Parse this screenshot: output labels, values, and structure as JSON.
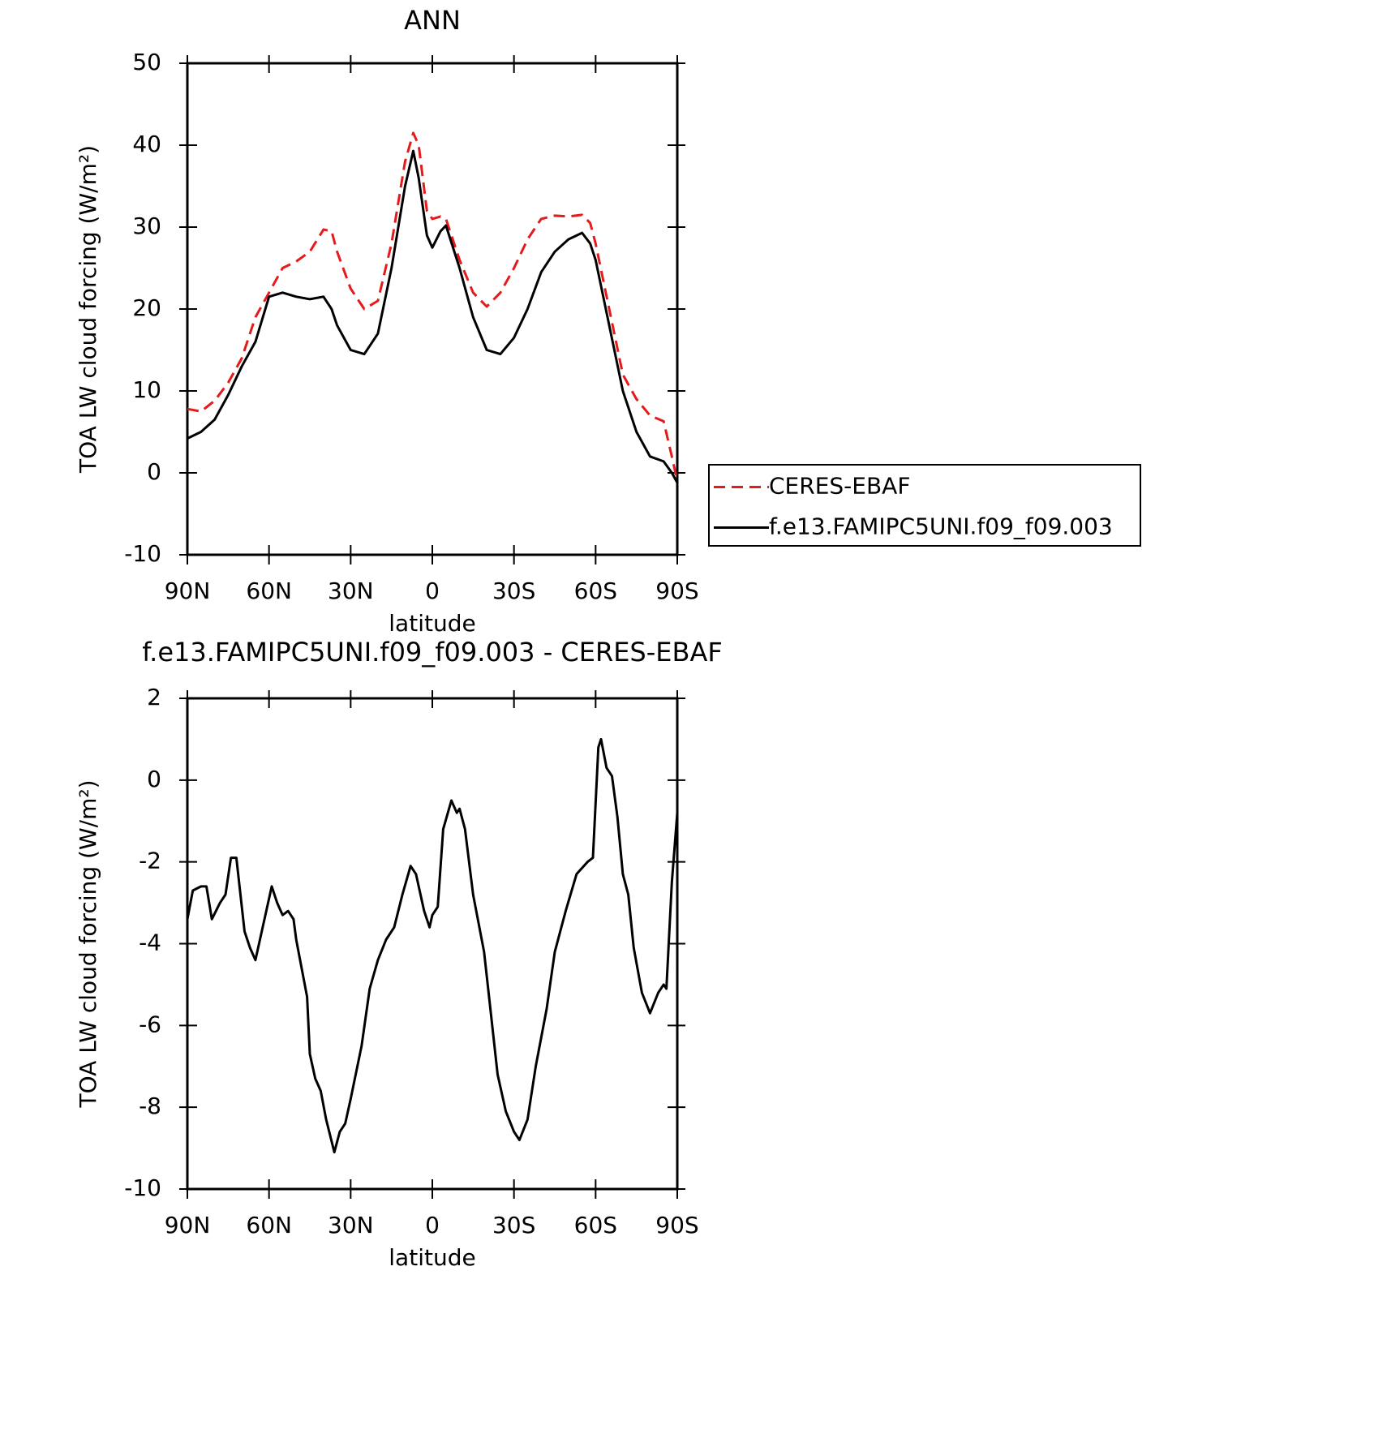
{
  "chart_data": [
    {
      "type": "line",
      "title": "ANN",
      "xlabel": "latitude",
      "ylabel": "TOA LW cloud forcing (W/m²)",
      "xlim": [
        90,
        -90
      ],
      "xticks": [
        {
          "value": 90,
          "label": "90N"
        },
        {
          "value": 60,
          "label": "60N"
        },
        {
          "value": 30,
          "label": "30N"
        },
        0,
        {
          "value": -30,
          "label": "30S"
        },
        {
          "value": -60,
          "label": "60S"
        },
        {
          "value": -90,
          "label": "90S"
        }
      ],
      "ylim": [
        -10,
        50
      ],
      "yticks": [
        -10,
        0,
        10,
        20,
        30,
        40,
        50
      ],
      "legend": "outside-right",
      "x": [
        90,
        85,
        80,
        75,
        70,
        65,
        60,
        55,
        50,
        45,
        40,
        37,
        35,
        30,
        25,
        20,
        15,
        10,
        7,
        5,
        2,
        0,
        -3,
        -5,
        -10,
        -15,
        -20,
        -25,
        -30,
        -35,
        -40,
        -45,
        -50,
        -55,
        -58,
        -60,
        -65,
        -70,
        -75,
        -80,
        -85,
        -88,
        -90
      ],
      "series": [
        {
          "name": "CERES-EBAF",
          "color": "#e41a1c",
          "line_style": "dashed",
          "values": [
            7.8,
            7.5,
            8.8,
            11,
            14,
            19,
            22,
            25,
            25.8,
            27,
            29.7,
            29.5,
            27,
            22.5,
            20,
            21,
            28,
            38,
            41.5,
            40,
            32,
            31,
            31.3,
            31,
            26,
            22,
            20.3,
            22,
            25,
            28.5,
            31,
            31.4,
            31.3,
            31.5,
            30.5,
            28,
            20,
            12,
            9,
            7,
            6.3,
            2,
            -1
          ]
        },
        {
          "name": "f.e13.FAMIPC5UNI.f09_f09.003",
          "color": "#000000",
          "line_style": "solid",
          "values": [
            4.2,
            5.0,
            6.5,
            9.5,
            13,
            16,
            21.5,
            22,
            21.5,
            21.2,
            21.5,
            20,
            18,
            15,
            14.5,
            17,
            25,
            35,
            39.3,
            36,
            29,
            27.5,
            29.5,
            30.2,
            25,
            19,
            15,
            14.5,
            16.5,
            20,
            24.5,
            27,
            28.5,
            29.3,
            28,
            26,
            18,
            10,
            5,
            2,
            1.4,
            0,
            -1.2
          ]
        }
      ]
    },
    {
      "type": "line",
      "title": "f.e13.FAMIPC5UNI.f09_f09.003 - CERES-EBAF",
      "xlabel": "latitude",
      "ylabel": "TOA LW cloud forcing (W/m²)",
      "xlim": [
        90,
        -90
      ],
      "xticks": [
        {
          "value": 90,
          "label": "90N"
        },
        {
          "value": 60,
          "label": "60N"
        },
        {
          "value": 30,
          "label": "30N"
        },
        0,
        {
          "value": -30,
          "label": "30S"
        },
        {
          "value": -60,
          "label": "60S"
        },
        {
          "value": -90,
          "label": "90S"
        }
      ],
      "ylim": [
        -10,
        2
      ],
      "yticks": [
        -10,
        -8,
        -6,
        -4,
        -2,
        0,
        2
      ],
      "x": [
        90,
        88,
        85,
        83,
        81,
        78,
        76,
        74,
        72,
        69,
        67,
        65,
        63,
        61,
        59,
        57,
        55,
        53,
        51,
        50,
        48,
        46,
        45,
        43,
        41,
        39,
        36,
        34,
        32,
        30,
        26,
        23,
        20,
        17,
        14,
        11,
        8,
        6,
        3,
        1,
        0,
        -2,
        -4,
        -7,
        -9,
        -10,
        -12,
        -15,
        -19,
        -21,
        -24,
        -27,
        -30,
        -32,
        -35,
        -38,
        -42,
        -45,
        -49,
        -53,
        -57,
        -59,
        -61,
        -62,
        -64,
        -66,
        -68,
        -70,
        -72,
        -74,
        -77,
        -80,
        -83,
        -85,
        -86,
        -88,
        -90
      ],
      "series": [
        {
          "name": "f.e13.FAMIPC5UNI.f09_f09.003 - CERES-EBAF",
          "color": "#000000",
          "line_style": "solid",
          "values": [
            -3.4,
            -2.7,
            -2.6,
            -2.6,
            -3.4,
            -3.0,
            -2.8,
            -1.9,
            -1.9,
            -3.7,
            -4.1,
            -4.4,
            -3.8,
            -3.2,
            -2.6,
            -3.0,
            -3.3,
            -3.2,
            -3.4,
            -3.9,
            -4.6,
            -5.3,
            -6.7,
            -7.3,
            -7.6,
            -8.3,
            -9.1,
            -8.6,
            -8.4,
            -7.8,
            -6.5,
            -5.1,
            -4.4,
            -3.9,
            -3.6,
            -2.8,
            -2.1,
            -2.3,
            -3.2,
            -3.6,
            -3.3,
            -3.1,
            -1.2,
            -0.5,
            -0.8,
            -0.7,
            -1.2,
            -2.8,
            -4.2,
            -5.4,
            -7.2,
            -8.1,
            -8.6,
            -8.8,
            -8.3,
            -7.0,
            -5.6,
            -4.2,
            -3.2,
            -2.3,
            -2.0,
            -1.9,
            0.8,
            1.0,
            0.3,
            0.1,
            -0.9,
            -2.3,
            -2.8,
            -4.1,
            -5.2,
            -5.7,
            -5.2,
            -5.0,
            -5.1,
            -2.5,
            -0.8
          ]
        }
      ]
    }
  ]
}
